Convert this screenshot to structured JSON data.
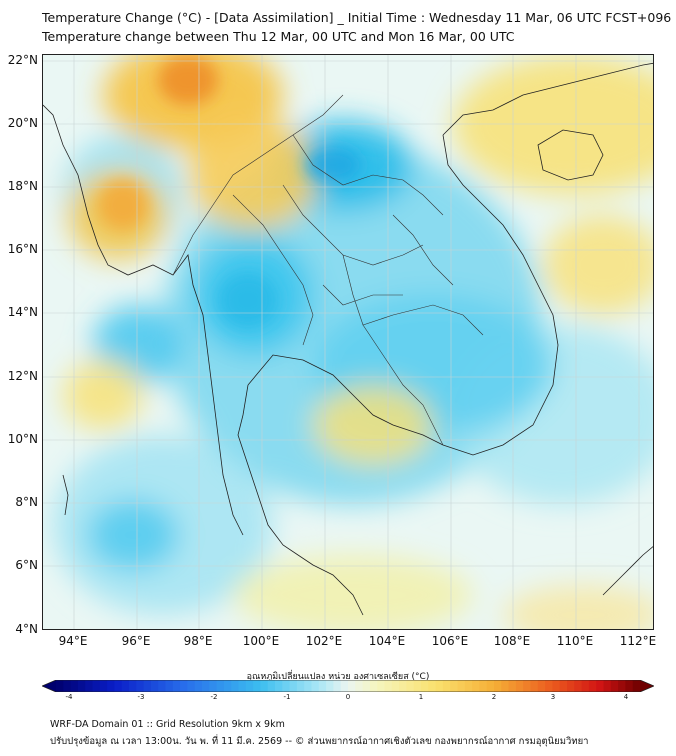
{
  "title": {
    "line1": "Temperature Change (°C) - [Data Assimilation] _ Initial Time : Wednesday 11 Mar, 06 UTC FCST+096",
    "line2": "Temperature change between Thu 12 Mar, 00 UTC and Mon 16 Mar, 00 UTC"
  },
  "map": {
    "lat_labels": [
      "22°N",
      "20°N",
      "18°N",
      "16°N",
      "14°N",
      "12°N",
      "10°N",
      "8°N",
      "6°N",
      "4°N"
    ],
    "lon_labels": [
      "94°E",
      "96°E",
      "98°E",
      "100°E",
      "102°E",
      "104°E",
      "106°E",
      "108°E",
      "110°E",
      "112°E"
    ],
    "lat_range": [
      4,
      22.3
    ],
    "lon_range": [
      93,
      112.5
    ],
    "field_description": "Temperature change field in °C",
    "warm_color": "#f5b43a",
    "cool_color": "#33c4ec"
  },
  "colorbar": {
    "label": "อุณหภูมิเปลี่ยนแปลง หน่วย องศาเซลเซียส (°C)",
    "ticks": [
      "-4",
      "-3",
      "-2",
      "-1",
      "0",
      "1",
      "2",
      "3",
      "4"
    ],
    "min": -4,
    "max": 4
  },
  "footer": {
    "line1": "WRF-DA Domain 01 :: Grid Resolution 9km x 9km",
    "line2": "ปรับปรุงข้อมูล ณ เวลา 13:00น. วัน พ. ที่ 11 มี.ค. 2569 -- © ส่วนพยากรณ์อากาศเชิงตัวเลข กองพยากรณ์อากาศ กรมอุตุนิยมวิทยา"
  }
}
